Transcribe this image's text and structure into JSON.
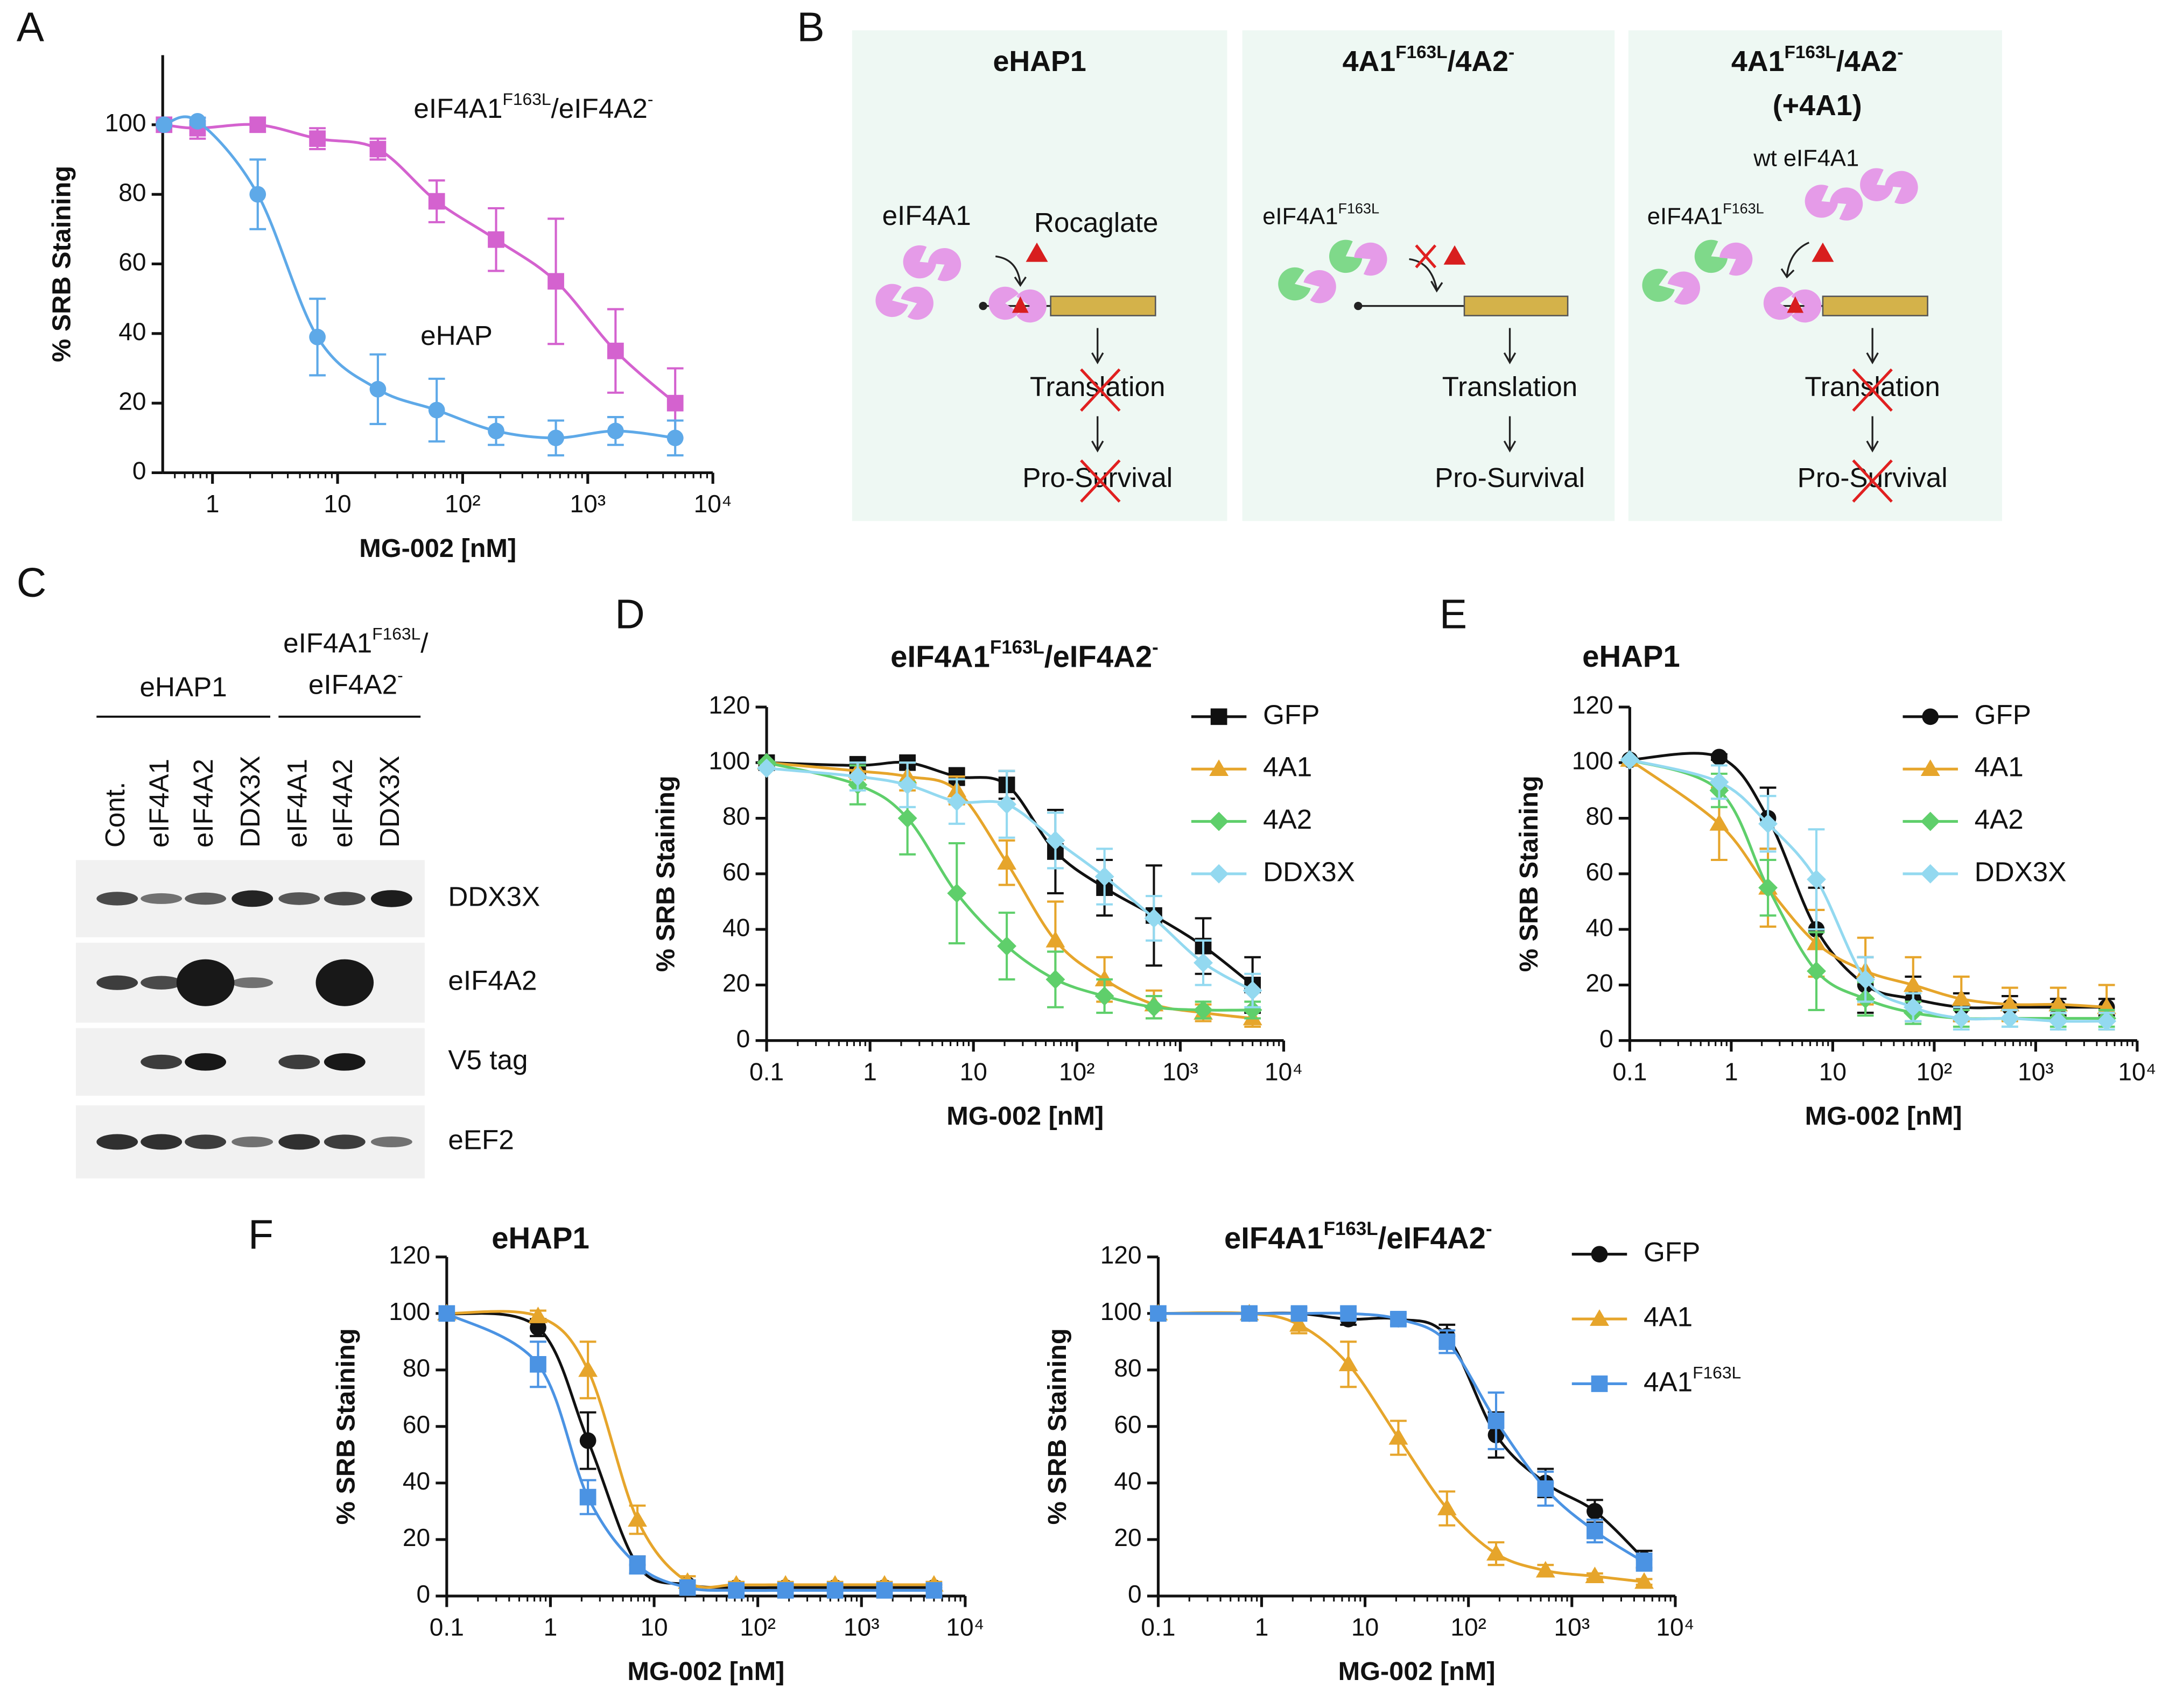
{
  "panel_labels": [
    "A",
    "B",
    "C",
    "D",
    "E",
    "F"
  ],
  "chart_data": [
    {
      "type": "line",
      "xscale": "log",
      "x": [
        0.41,
        0.76,
        2.3,
        6.9,
        21,
        62,
        185,
        556,
        1667,
        5000
      ],
      "xlim": [
        0.4,
        10000
      ],
      "xticks": [
        1,
        10,
        {
          "value": 100,
          "label": "10²"
        },
        {
          "value": 1000,
          "label": "10³"
        },
        {
          "value": 10000,
          "label": "10⁴"
        }
      ],
      "ylim": [
        0,
        120
      ],
      "yticks": [
        0,
        20,
        40,
        60,
        80,
        100
      ],
      "ylabel": "% SRB Staining",
      "xlabel": "MG-002 [nM]",
      "legend": "on-curve",
      "series": [
        {
          "name": [
            "eIF4A1",
            [
              "F163L"
            ],
            "/eIF4A2",
            [
              "-"
            ]
          ],
          "color": "#d462cf",
          "marker": "square",
          "values": [
            100,
            99,
            100,
            96,
            93,
            78,
            67,
            55,
            35,
            20
          ],
          "errors": [
            0,
            3,
            2,
            3,
            3,
            6,
            9,
            18,
            12,
            10
          ]
        },
        {
          "name": "eHAP",
          "color": "#5ea9e8",
          "marker": "circle",
          "values": [
            100,
            101,
            80,
            39,
            24,
            18,
            12,
            10,
            12,
            10
          ],
          "errors": [
            0,
            1,
            10,
            11,
            10,
            9,
            4,
            5,
            4,
            5
          ]
        }
      ]
    },
    {
      "type": "line",
      "xscale": "log",
      "title": [
        "eIF4A1",
        [
          "F163L"
        ],
        "/eIF4A2",
        [
          "-"
        ]
      ],
      "x": [
        0.1,
        0.76,
        2.3,
        6.9,
        21,
        62,
        185,
        556,
        1667,
        5000
      ],
      "xlim": [
        0.1,
        10000
      ],
      "xticks": [
        0.1,
        1,
        10,
        {
          "value": 100,
          "label": "10²"
        },
        {
          "value": 1000,
          "label": "10³"
        },
        {
          "value": 10000,
          "label": "10⁴"
        }
      ],
      "ylim": [
        0,
        120
      ],
      "yticks": [
        0,
        20,
        40,
        60,
        80,
        100,
        120
      ],
      "ylabel": "% SRB Staining",
      "xlabel": "MG-002 [nM]",
      "legend": "top-right",
      "series": [
        {
          "name": "GFP",
          "color": "#111111",
          "marker": "square",
          "values": [
            100,
            99,
            100,
            95,
            92,
            68,
            55,
            45,
            34,
            20
          ],
          "errors": [
            0,
            3,
            2,
            3,
            5,
            15,
            10,
            18,
            10,
            10
          ]
        },
        {
          "name": "4A1",
          "color": "#e6a52b",
          "marker": "triangle",
          "values": [
            100,
            97,
            95,
            90,
            64,
            36,
            22,
            13,
            10,
            8
          ],
          "errors": [
            0,
            3,
            5,
            5,
            8,
            14,
            8,
            5,
            3,
            3
          ]
        },
        {
          "name": "4A2",
          "color": "#5fcf6b",
          "marker": "diamond",
          "values": [
            100,
            92,
            80,
            53,
            34,
            22,
            16,
            12,
            11,
            11
          ],
          "errors": [
            0,
            7,
            13,
            18,
            12,
            10,
            6,
            4,
            3,
            3
          ]
        },
        {
          "name": "DDX3X",
          "color": "#93d9f0",
          "marker": "diamond",
          "values": [
            98,
            95,
            92,
            86,
            85,
            72,
            59,
            44,
            28,
            18
          ],
          "errors": [
            0,
            5,
            8,
            8,
            12,
            10,
            10,
            8,
            8,
            6
          ]
        }
      ]
    },
    {
      "type": "line",
      "xscale": "log",
      "title": "eHAP1",
      "x": [
        0.1,
        0.76,
        2.3,
        6.9,
        21,
        62,
        185,
        556,
        1667,
        5000
      ],
      "xlim": [
        0.1,
        10000
      ],
      "xticks": [
        0.1,
        1,
        10,
        {
          "value": 100,
          "label": "10²"
        },
        {
          "value": 1000,
          "label": "10³"
        },
        {
          "value": 10000,
          "label": "10⁴"
        }
      ],
      "ylim": [
        0,
        120
      ],
      "yticks": [
        0,
        20,
        40,
        60,
        80,
        100,
        120
      ],
      "ylabel": "% SRB Staining",
      "xlabel": "MG-002 [nM]",
      "legend": "top-right",
      "series": [
        {
          "name": "GFP",
          "color": "#111111",
          "marker": "circle",
          "values": [
            101,
            102,
            80,
            40,
            20,
            15,
            12,
            12,
            12,
            12
          ],
          "errors": [
            0,
            1,
            11,
            15,
            10,
            8,
            5,
            4,
            3,
            3
          ]
        },
        {
          "name": "4A1",
          "color": "#e6a52b",
          "marker": "triangle",
          "values": [
            101,
            78,
            55,
            35,
            25,
            20,
            15,
            13,
            13,
            12
          ],
          "errors": [
            0,
            13,
            14,
            12,
            12,
            10,
            8,
            6,
            6,
            8
          ]
        },
        {
          "name": "4A2",
          "color": "#5fcf6b",
          "marker": "diamond",
          "values": [
            101,
            90,
            55,
            25,
            15,
            10,
            8,
            8,
            8,
            8
          ],
          "errors": [
            0,
            6,
            10,
            14,
            6,
            4,
            3,
            3,
            3,
            3
          ]
        },
        {
          "name": "DDX3X",
          "color": "#93d9f0",
          "marker": "diamond",
          "values": [
            101,
            93,
            78,
            58,
            22,
            12,
            8,
            8,
            7,
            7
          ],
          "errors": [
            0,
            6,
            10,
            18,
            8,
            5,
            4,
            3,
            3,
            3
          ]
        }
      ]
    },
    {
      "type": "line",
      "xscale": "log",
      "title": "eHAP1",
      "x": [
        0.1,
        0.76,
        2.3,
        6.9,
        21,
        62,
        185,
        556,
        1667,
        5000
      ],
      "xlim": [
        0.1,
        10000
      ],
      "xticks": [
        0.1,
        1,
        10,
        {
          "value": 100,
          "label": "10²"
        },
        {
          "value": 1000,
          "label": "10³"
        },
        {
          "value": 10000,
          "label": "10⁴"
        }
      ],
      "ylim": [
        0,
        120
      ],
      "yticks": [
        0,
        20,
        40,
        60,
        80,
        100,
        120
      ],
      "ylabel": "% SRB Staining",
      "xlabel": "MG-002 [nM]",
      "legend": "none",
      "series": [
        {
          "color": "#111111",
          "marker": "circle",
          "values": [
            100,
            95,
            55,
            11,
            4,
            3,
            3,
            3,
            3,
            3
          ],
          "errors": [
            0,
            3,
            10,
            3,
            1,
            1,
            1,
            1,
            1,
            1
          ]
        },
        {
          "color": "#e6a52b",
          "marker": "triangle",
          "values": [
            100,
            99,
            80,
            27,
            5,
            4,
            4,
            4,
            4,
            4
          ],
          "errors": [
            0,
            2,
            10,
            5,
            2,
            1,
            1,
            1,
            1,
            1
          ]
        },
        {
          "color": "#4b93e3",
          "marker": "square",
          "values": [
            100,
            82,
            35,
            11,
            3,
            2,
            2,
            2,
            2,
            2
          ],
          "errors": [
            0,
            8,
            6,
            3,
            1,
            1,
            1,
            1,
            1,
            1
          ]
        }
      ]
    },
    {
      "type": "line",
      "xscale": "log",
      "title": [
        "eIF4A1",
        [
          "F163L"
        ],
        "/eIF4A2",
        [
          "-"
        ]
      ],
      "x": [
        0.1,
        0.76,
        2.3,
        6.9,
        21,
        62,
        185,
        556,
        1667,
        5000
      ],
      "xlim": [
        0.1,
        10000
      ],
      "xticks": [
        0.1,
        1,
        10,
        {
          "value": 100,
          "label": "10²"
        },
        {
          "value": 1000,
          "label": "10³"
        },
        {
          "value": 10000,
          "label": "10⁴"
        }
      ],
      "ylim": [
        0,
        120
      ],
      "yticks": [
        0,
        20,
        40,
        60,
        80,
        100,
        120
      ],
      "ylabel": "% SRB Staining",
      "xlabel": "MG-002 [nM]",
      "legend": "outside-right",
      "series": [
        {
          "name": "GFP",
          "color": "#111111",
          "marker": "circle",
          "values": [
            100,
            100,
            100,
            98,
            98,
            92,
            57,
            40,
            30,
            13
          ],
          "errors": [
            0,
            2,
            2,
            2,
            2,
            4,
            8,
            5,
            4,
            3
          ]
        },
        {
          "name": "4A1",
          "color": "#e6a52b",
          "marker": "triangle",
          "values": [
            100,
            100,
            96,
            82,
            56,
            31,
            15,
            9,
            7,
            5
          ],
          "errors": [
            0,
            2,
            3,
            8,
            6,
            6,
            4,
            2,
            1,
            1
          ]
        },
        {
          "name": [
            "4A1",
            [
              "F163L"
            ]
          ],
          "color": "#4b93e3",
          "marker": "square",
          "values": [
            100,
            100,
            100,
            100,
            98,
            90,
            62,
            38,
            23,
            12
          ],
          "errors": [
            0,
            2,
            2,
            2,
            2,
            4,
            10,
            6,
            4,
            3
          ]
        }
      ]
    }
  ],
  "diagram": {
    "panels": [
      {
        "title": "eHAP1",
        "labels": [
          "eIF4A1",
          "Rocaglate",
          "Translation",
          "Pro-Survival"
        ]
      },
      {
        "title": [
          "4A1",
          [
            "F163L"
          ],
          "/4A2",
          [
            "-"
          ]
        ],
        "labels": [
          [
            "eIF4A1",
            [
              "F163L"
            ]
          ],
          "Translation",
          "Pro-Survival"
        ]
      },
      {
        "title": [
          "4A1",
          [
            "F163L"
          ],
          "/4A2",
          [
            "-"
          ]
        ],
        "subtitle": "(+4A1)",
        "labels": [
          "wt eIF4A1",
          [
            "eIF4A1",
            [
              "F163L"
            ]
          ],
          "Translation",
          "Pro-Survival"
        ]
      }
    ]
  },
  "blot": {
    "groups": [
      "eHAP1",
      [
        "eIF4A1",
        [
          "F163L"
        ],
        "/"
      ],
      [
        "eIF4A2",
        [
          "-"
        ]
      ]
    ],
    "lanes": [
      "Cont.",
      "eIF4A1",
      "eIF4A2",
      "DDX3X",
      "eIF4A1",
      "eIF4A2",
      "DDX3X"
    ],
    "rows": [
      "DDX3X",
      "eIF4A2",
      "V5 tag",
      "eEF2"
    ]
  }
}
